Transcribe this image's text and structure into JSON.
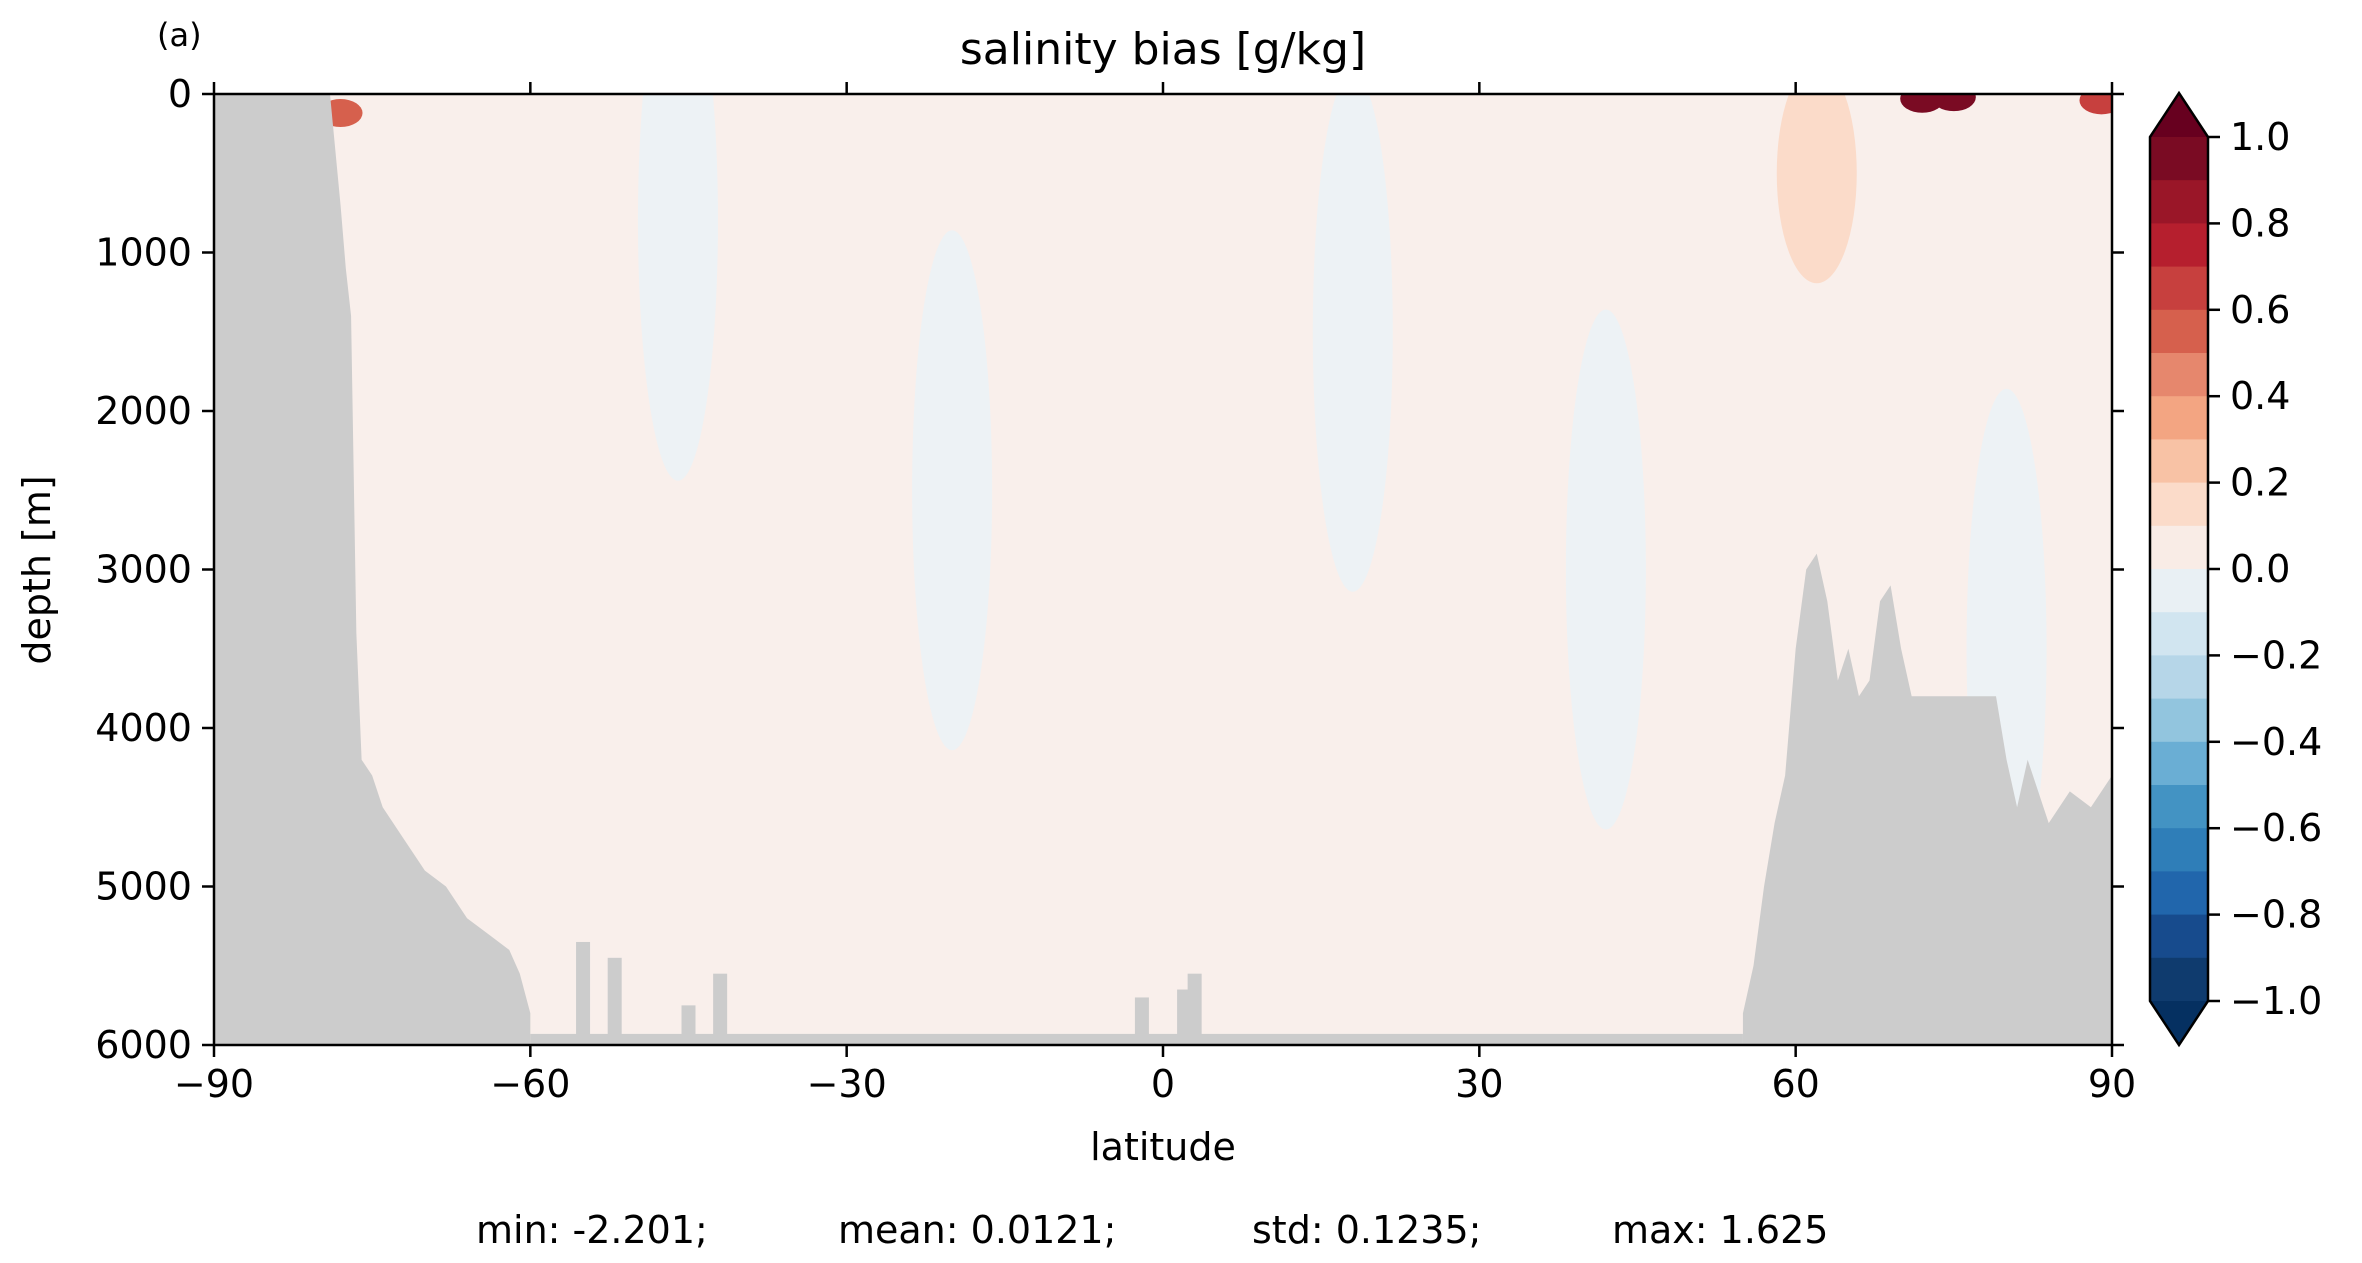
{
  "chart_data": {
    "type": "heatmap",
    "panel_label": "(a)",
    "title": "salinity bias [g/kg]",
    "xlabel": "latitude",
    "ylabel": "depth [m]",
    "xlim": [
      -90,
      90
    ],
    "ylim": [
      6000,
      0
    ],
    "xticks": [
      -90,
      -60,
      -30,
      0,
      30,
      60,
      90
    ],
    "xtick_labels": [
      "−90",
      "−60",
      "−30",
      "0",
      "30",
      "60",
      "90"
    ],
    "yticks": [
      0,
      1000,
      2000,
      3000,
      4000,
      5000,
      6000
    ],
    "ytick_labels": [
      "0",
      "1000",
      "2000",
      "3000",
      "4000",
      "5000",
      "6000"
    ],
    "colorbar": {
      "range": [
        -1.0,
        1.0
      ],
      "extend": "both",
      "ticks": [
        1.0,
        0.8,
        0.6,
        0.4,
        0.2,
        0.0,
        -0.2,
        -0.4,
        -0.6,
        -0.8,
        -1.0
      ],
      "tick_labels": [
        "1.0",
        "0.8",
        "0.6",
        "0.4",
        "0.2",
        "0.0",
        "−0.2",
        "−0.4",
        "−0.6",
        "−0.8",
        "−1.0"
      ],
      "levels_top_to_bottom": [
        "#7a0b23",
        "#9a1628",
        "#b61f2e",
        "#c7403e",
        "#d6604d",
        "#e6876d",
        "#f3a582",
        "#f8c2a5",
        "#fbdbc9",
        "#f9ece6",
        "#e9f0f4",
        "#d1e5f0",
        "#b6d6e8",
        "#92c5de",
        "#6aaed4",
        "#4393c3",
        "#2f7eb8",
        "#2166ac",
        "#174b8d",
        "#0f3b6e"
      ],
      "extend_high_color": "#67001f",
      "extend_low_color": "#053061"
    },
    "land_color": "#cccccc",
    "background_bias_colors": {
      "slightly_positive": "#f9efeb",
      "slightly_negative": "#edf2f5"
    },
    "bathymetry_left": [
      [
        -79,
        0
      ],
      [
        -78,
        700
      ],
      [
        -77.5,
        1100
      ],
      [
        -77,
        1400
      ],
      [
        -76.5,
        3400
      ],
      [
        -76,
        4200
      ],
      [
        -75,
        4300
      ],
      [
        -74,
        4500
      ],
      [
        -72,
        4700
      ],
      [
        -70,
        4900
      ],
      [
        -68,
        5000
      ],
      [
        -66,
        5200
      ],
      [
        -64,
        5300
      ],
      [
        -62,
        5400
      ],
      [
        -61,
        5550
      ],
      [
        -60,
        5800
      ],
      [
        -60,
        6000
      ]
    ],
    "bathymetry_right": [
      [
        55,
        6000
      ],
      [
        55,
        5800
      ],
      [
        56,
        5500
      ],
      [
        57,
        5000
      ],
      [
        58,
        4600
      ],
      [
        59,
        4300
      ],
      [
        60,
        3500
      ],
      [
        61,
        3000
      ],
      [
        62,
        2900
      ],
      [
        63,
        3200
      ],
      [
        64,
        3700
      ],
      [
        65,
        3500
      ],
      [
        66,
        3800
      ],
      [
        67,
        3700
      ],
      [
        68,
        3200
      ],
      [
        69,
        3100
      ],
      [
        70,
        3500
      ],
      [
        71,
        3800
      ],
      [
        79,
        3800
      ],
      [
        80,
        4200
      ],
      [
        81,
        4500
      ],
      [
        82,
        4200
      ],
      [
        83,
        4400
      ],
      [
        84,
        4600
      ],
      [
        86,
        4400
      ],
      [
        88,
        4500
      ],
      [
        90,
        4300
      ]
    ],
    "bottom_ridges": [
      [
        -55,
        5350
      ],
      [
        -52,
        5450
      ],
      [
        -45,
        5750
      ],
      [
        -42,
        5550
      ],
      [
        -2,
        5700
      ],
      [
        2,
        5650
      ],
      [
        3,
        5550
      ]
    ],
    "positive_patches": [
      {
        "lat": -78,
        "depth": 120,
        "value": 0.6
      },
      {
        "lat": 75,
        "depth": 20,
        "value": 1.0
      },
      {
        "lat": 72,
        "depth": 30,
        "value": 0.9
      },
      {
        "lat": 89,
        "depth": 40,
        "value": 0.7
      },
      {
        "lat": 62,
        "depth": 500,
        "value": 0.2
      }
    ],
    "negative_patches": [
      {
        "lat": -46,
        "depth": 800,
        "value": -0.1
      },
      {
        "lat": -20,
        "depth": 2500,
        "value": -0.1
      },
      {
        "lat": 18,
        "depth": 1500,
        "value": -0.1
      },
      {
        "lat": 42,
        "depth": 3000,
        "value": -0.1
      },
      {
        "lat": 80,
        "depth": 3500,
        "value": -0.1
      }
    ],
    "stats": {
      "min": "min: -2.201;",
      "mean": "mean: 0.0121;",
      "std": "std: 0.1235;",
      "max": "max: 1.625"
    }
  }
}
